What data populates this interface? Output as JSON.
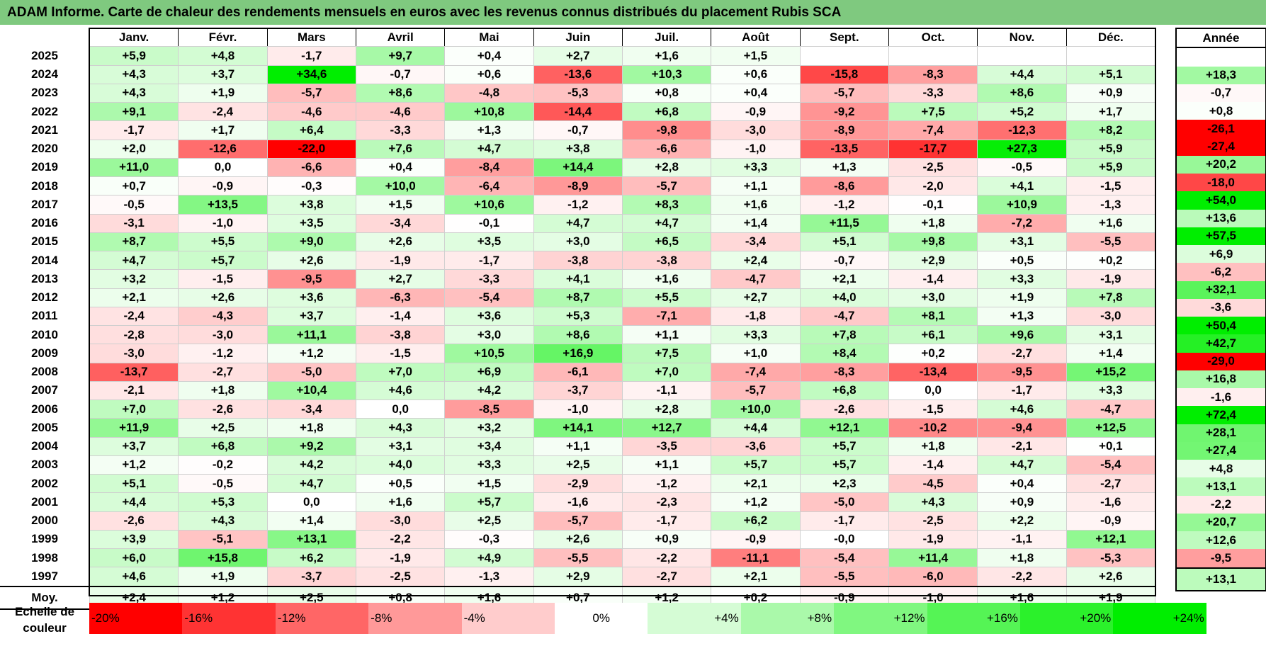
{
  "title": "ADAM Informe. Carte de chaleur des rendements mensuels en euros avec les revenus connus distribués du placement Rubis SCA",
  "chart_data": {
    "type": "heatmap",
    "title": "ADAM Informe. Carte de chaleur des rendements mensuels en euros avec les revenus connus distribués du placement Rubis SCA",
    "months": [
      "Janv.",
      "Févr.",
      "Mars",
      "Avril",
      "Mai",
      "Juin",
      "Juil.",
      "Août",
      "Sept.",
      "Oct.",
      "Nov.",
      "Déc."
    ],
    "annual_header": "Année",
    "rows": [
      {
        "year": "2025",
        "values": [
          "+5,9",
          "+4,8",
          "-1,7",
          "+9,7",
          "+0,4",
          "+2,7",
          "+1,6",
          "+1,5",
          "",
          "",
          "",
          ""
        ],
        "annual": ""
      },
      {
        "year": "2024",
        "values": [
          "+4,3",
          "+3,7",
          "+34,6",
          "-0,7",
          "+0,6",
          "-13,6",
          "+10,3",
          "+0,6",
          "-15,8",
          "-8,3",
          "+4,4",
          "+5,1"
        ],
        "annual": "+18,3"
      },
      {
        "year": "2023",
        "values": [
          "+4,3",
          "+1,9",
          "-5,7",
          "+8,6",
          "-4,8",
          "-5,3",
          "+0,8",
          "+0,4",
          "-5,7",
          "-3,3",
          "+8,6",
          "+0,9"
        ],
        "annual": "-0,7"
      },
      {
        "year": "2022",
        "values": [
          "+9,1",
          "-2,4",
          "-4,6",
          "-4,6",
          "+10,8",
          "-14,4",
          "+6,8",
          "-0,9",
          "-9,2",
          "+7,5",
          "+5,2",
          "+1,7"
        ],
        "annual": "+0,8"
      },
      {
        "year": "2021",
        "values": [
          "-1,7",
          "+1,7",
          "+6,4",
          "-3,3",
          "+1,3",
          "-0,7",
          "-9,8",
          "-3,0",
          "-8,9",
          "-7,4",
          "-12,3",
          "+8,2"
        ],
        "annual": "-26,1"
      },
      {
        "year": "2020",
        "values": [
          "+2,0",
          "-12,6",
          "-22,0",
          "+7,6",
          "+4,7",
          "+3,8",
          "-6,6",
          "-1,0",
          "-13,5",
          "-17,7",
          "+27,3",
          "+5,9"
        ],
        "annual": "-27,4"
      },
      {
        "year": "2019",
        "values": [
          "+11,0",
          "0,0",
          "-6,6",
          "+0,4",
          "-8,4",
          "+14,4",
          "+2,8",
          "+3,3",
          "+1,3",
          "-2,5",
          "-0,5",
          "+5,9"
        ],
        "annual": "+20,2"
      },
      {
        "year": "2018",
        "values": [
          "+0,7",
          "-0,9",
          "-0,3",
          "+10,0",
          "-6,4",
          "-8,9",
          "-5,7",
          "+1,1",
          "-8,6",
          "-2,0",
          "+4,1",
          "-1,5"
        ],
        "annual": "-18,0"
      },
      {
        "year": "2017",
        "values": [
          "-0,5",
          "+13,5",
          "+3,8",
          "+1,5",
          "+10,6",
          "-1,2",
          "+8,3",
          "+1,6",
          "-1,2",
          "-0,1",
          "+10,9",
          "-1,3"
        ],
        "annual": "+54,0"
      },
      {
        "year": "2016",
        "values": [
          "-3,1",
          "-1,0",
          "+3,5",
          "-3,4",
          "-0,1",
          "+4,7",
          "+4,7",
          "+1,4",
          "+11,5",
          "+1,8",
          "-7,2",
          "+1,6"
        ],
        "annual": "+13,6"
      },
      {
        "year": "2015",
        "values": [
          "+8,7",
          "+5,5",
          "+9,0",
          "+2,6",
          "+3,5",
          "+3,0",
          "+6,5",
          "-3,4",
          "+5,1",
          "+9,8",
          "+3,1",
          "-5,5"
        ],
        "annual": "+57,5"
      },
      {
        "year": "2014",
        "values": [
          "+4,7",
          "+5,7",
          "+2,6",
          "-1,9",
          "-1,7",
          "-3,8",
          "-3,8",
          "+2,4",
          "-0,7",
          "+2,9",
          "+0,5",
          "+0,2"
        ],
        "annual": "+6,9"
      },
      {
        "year": "2013",
        "values": [
          "+3,2",
          "-1,5",
          "-9,5",
          "+2,7",
          "-3,3",
          "+4,1",
          "+1,6",
          "-4,7",
          "+2,1",
          "-1,4",
          "+3,3",
          "-1,9"
        ],
        "annual": "-6,2"
      },
      {
        "year": "2012",
        "values": [
          "+2,1",
          "+2,6",
          "+3,6",
          "-6,3",
          "-5,4",
          "+8,7",
          "+5,5",
          "+2,7",
          "+4,0",
          "+3,0",
          "+1,9",
          "+7,8"
        ],
        "annual": "+32,1"
      },
      {
        "year": "2011",
        "values": [
          "-2,4",
          "-4,3",
          "+3,7",
          "-1,4",
          "+3,6",
          "+5,3",
          "-7,1",
          "-1,8",
          "-4,7",
          "+8,1",
          "+1,3",
          "-3,0"
        ],
        "annual": "-3,6"
      },
      {
        "year": "2010",
        "values": [
          "-2,8",
          "-3,0",
          "+11,1",
          "-3,8",
          "+3,0",
          "+8,6",
          "+1,1",
          "+3,3",
          "+7,8",
          "+6,1",
          "+9,6",
          "+3,1"
        ],
        "annual": "+50,4"
      },
      {
        "year": "2009",
        "values": [
          "-3,0",
          "-1,2",
          "+1,2",
          "-1,5",
          "+10,5",
          "+16,9",
          "+7,5",
          "+1,0",
          "+8,4",
          "+0,2",
          "-2,7",
          "+1,4"
        ],
        "annual": "+42,7"
      },
      {
        "year": "2008",
        "values": [
          "-13,7",
          "-2,7",
          "-5,0",
          "+7,0",
          "+6,9",
          "-6,1",
          "+7,0",
          "-7,4",
          "-8,3",
          "-13,4",
          "-9,5",
          "+15,2"
        ],
        "annual": "-29,0"
      },
      {
        "year": "2007",
        "values": [
          "-2,1",
          "+1,8",
          "+10,4",
          "+4,6",
          "+4,2",
          "-3,7",
          "-1,1",
          "-5,7",
          "+6,8",
          "0,0",
          "-1,7",
          "+3,3"
        ],
        "annual": "+16,8"
      },
      {
        "year": "2006",
        "values": [
          "+7,0",
          "-2,6",
          "-3,4",
          "0,0",
          "-8,5",
          "-1,0",
          "+2,8",
          "+10,0",
          "-2,6",
          "-1,5",
          "+4,6",
          "-4,7"
        ],
        "annual": "-1,6"
      },
      {
        "year": "2005",
        "values": [
          "+11,9",
          "+2,5",
          "+1,8",
          "+4,3",
          "+3,2",
          "+14,1",
          "+12,7",
          "+4,4",
          "+12,1",
          "-10,2",
          "-9,4",
          "+12,5"
        ],
        "annual": "+72,4"
      },
      {
        "year": "2004",
        "values": [
          "+3,7",
          "+6,8",
          "+9,2",
          "+3,1",
          "+3,4",
          "+1,1",
          "-3,5",
          "-3,6",
          "+5,7",
          "+1,8",
          "-2,1",
          "+0,1"
        ],
        "annual": "+28,1"
      },
      {
        "year": "2003",
        "values": [
          "+1,2",
          "-0,2",
          "+4,2",
          "+4,0",
          "+3,3",
          "+2,5",
          "+1,1",
          "+5,7",
          "+5,7",
          "-1,4",
          "+4,7",
          "-5,4"
        ],
        "annual": "+27,4"
      },
      {
        "year": "2002",
        "values": [
          "+5,1",
          "-0,5",
          "+4,7",
          "+0,5",
          "+1,5",
          "-2,9",
          "-1,2",
          "+2,1",
          "+2,3",
          "-4,5",
          "+0,4",
          "-2,7"
        ],
        "annual": "+4,8"
      },
      {
        "year": "2001",
        "values": [
          "+4,4",
          "+5,3",
          "0,0",
          "+1,6",
          "+5,7",
          "-1,6",
          "-2,3",
          "+1,2",
          "-5,0",
          "+4,3",
          "+0,9",
          "-1,6"
        ],
        "annual": "+13,1"
      },
      {
        "year": "2000",
        "values": [
          "-2,6",
          "+4,3",
          "+1,4",
          "-3,0",
          "+2,5",
          "-5,7",
          "-1,7",
          "+6,2",
          "-1,7",
          "-2,5",
          "+2,2",
          "-0,9"
        ],
        "annual": "-2,2"
      },
      {
        "year": "1999",
        "values": [
          "+3,9",
          "-5,1",
          "+13,1",
          "-2,2",
          "-0,3",
          "+2,6",
          "+0,9",
          "-0,9",
          "-0,0",
          "-1,9",
          "-1,1",
          "+12,1"
        ],
        "annual": "+20,7"
      },
      {
        "year": "1998",
        "values": [
          "+6,0",
          "+15,8",
          "+6,2",
          "-1,9",
          "+4,9",
          "-5,5",
          "-2,2",
          "-11,1",
          "-5,4",
          "+11,4",
          "+1,8",
          "-5,3"
        ],
        "annual": "+12,6"
      },
      {
        "year": "1997",
        "values": [
          "+4,6",
          "+1,9",
          "-3,7",
          "-2,5",
          "-1,3",
          "+2,9",
          "-2,7",
          "+2,1",
          "-5,5",
          "-6,0",
          "-2,2",
          "+2,6"
        ],
        "annual": "-9,5"
      }
    ],
    "average": {
      "label": "Moy.",
      "values": [
        "+2,4",
        "+1,2",
        "+2,5",
        "+0,8",
        "+1,6",
        "+0,7",
        "+1,2",
        "+0,2",
        "-0,9",
        "-1,0",
        "+1,6",
        "+1,9"
      ],
      "annual": "+13,1"
    },
    "color_scale": {
      "label": "Echelle de couleur",
      "stops": [
        "-20%",
        "-16%",
        "-12%",
        "-8%",
        "-4%",
        "0%",
        "+4%",
        "+8%",
        "+12%",
        "+16%",
        "+20%",
        "+24%"
      ],
      "negative_max_color": "#ff0000",
      "neutral_color": "#ffffff",
      "positive_max_color": "#00ee00"
    }
  }
}
